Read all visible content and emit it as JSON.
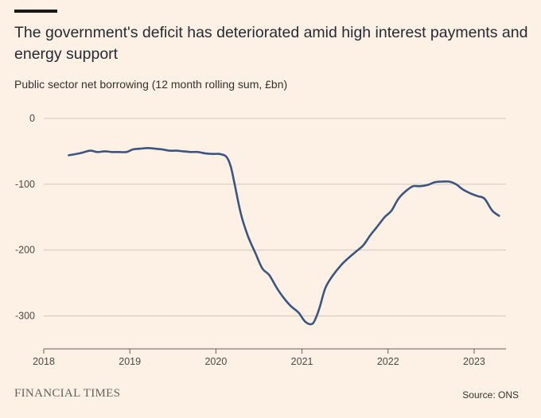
{
  "header": {
    "title": "The government's deficit has deteriorated amid high interest payments and energy support",
    "subtitle": "Public sector net borrowing (12 month rolling sum, £bn)"
  },
  "footer": {
    "logo": "FINANCIAL TIMES",
    "source": "Source: ONS"
  },
  "colors": {
    "background": "#fdf1e6",
    "line": "#3a5583",
    "grid": "#cfc6bd",
    "axis": "#66605c"
  },
  "chart_data": {
    "type": "line",
    "title": "The government's deficit has deteriorated amid high interest payments and energy support",
    "ylabel": "Public sector net borrowing (12 month rolling sum, £bn)",
    "xlabel": "",
    "xlim": [
      2018,
      2023.37
    ],
    "ylim": [
      -350,
      0
    ],
    "x_ticks": [
      2018,
      2019,
      2020,
      2021,
      2022,
      2023
    ],
    "y_ticks": [
      0,
      -100,
      -200,
      -300
    ],
    "y_tick_labels": [
      "0",
      "-100",
      "-200",
      "-300"
    ],
    "x_tick_labels": [
      "2018",
      "2019",
      "2020",
      "2021",
      "2022",
      "2023"
    ],
    "grid": true,
    "series": [
      {
        "name": "Public sector net borrowing",
        "x": [
          2018.29,
          2018.42,
          2018.54,
          2018.62,
          2018.71,
          2018.79,
          2018.87,
          2018.96,
          2019.04,
          2019.12,
          2019.21,
          2019.29,
          2019.37,
          2019.46,
          2019.54,
          2019.62,
          2019.71,
          2019.79,
          2019.87,
          2019.96,
          2020.04,
          2020.12,
          2020.17,
          2020.21,
          2020.29,
          2020.37,
          2020.46,
          2020.54,
          2020.62,
          2020.71,
          2020.79,
          2020.87,
          2020.96,
          2021.04,
          2021.12,
          2021.17,
          2021.21,
          2021.27,
          2021.35,
          2021.46,
          2021.54,
          2021.62,
          2021.71,
          2021.79,
          2021.87,
          2021.96,
          2022.04,
          2022.12,
          2022.21,
          2022.29,
          2022.37,
          2022.46,
          2022.54,
          2022.62,
          2022.71,
          2022.79,
          2022.87,
          2022.96,
          2023.04,
          2023.12,
          2023.21,
          2023.29
        ],
        "values": [
          -56,
          -53,
          -49,
          -51,
          -50,
          -51,
          -51,
          -51,
          -47,
          -46,
          -45,
          -46,
          -47,
          -49,
          -49,
          -50,
          -51,
          -51,
          -53,
          -54,
          -54,
          -58,
          -72,
          -95,
          -145,
          -178,
          -205,
          -228,
          -238,
          -258,
          -273,
          -285,
          -295,
          -309,
          -312,
          -300,
          -285,
          -258,
          -240,
          -222,
          -212,
          -203,
          -193,
          -178,
          -165,
          -150,
          -140,
          -122,
          -110,
          -103,
          -103,
          -101,
          -97,
          -96,
          -96,
          -100,
          -108,
          -114,
          -118,
          -122,
          -140,
          -148
        ]
      }
    ]
  }
}
